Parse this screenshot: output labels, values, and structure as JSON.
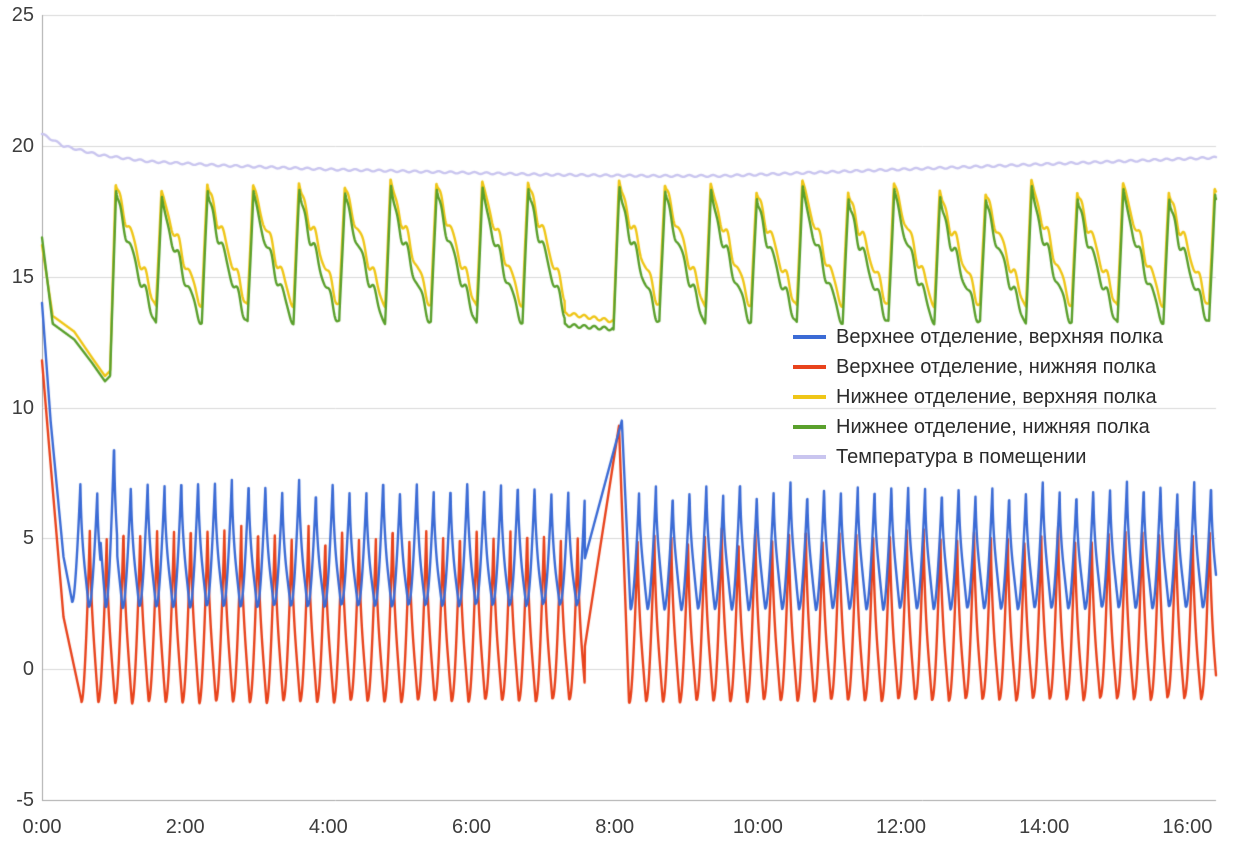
{
  "chart_data": {
    "type": "line",
    "title": "",
    "xlabel": "",
    "ylabel": "",
    "x_axis": {
      "tick_labels": [
        "0:00",
        "2:00",
        "4:00",
        "6:00",
        "8:00",
        "10:00",
        "12:00",
        "14:00",
        "16:00"
      ],
      "tick_hours": [
        0,
        2,
        4,
        6,
        8,
        10,
        12,
        14,
        16
      ],
      "range_hours": [
        0,
        16.4
      ]
    },
    "y_axis": {
      "tick_values": [
        25,
        20,
        15,
        10,
        5,
        0,
        -5
      ],
      "range": [
        -5,
        25
      ]
    },
    "grid": {
      "horizontal": true,
      "color": "#d9d9d9",
      "axis_color": "#a6a6a6"
    },
    "legend": {
      "position": "middle-right"
    },
    "draw_order": [
      4,
      2,
      3,
      1,
      0
    ],
    "series": [
      {
        "name": "Верхнее отделение, верхняя полка",
        "color": "#3b6bd5",
        "description": "Starts at 14.0°C, drops to ~2.4°C by 0:25, then compressor cycling between ~2.3 and ~7.0°C with ~14 min period; one taller early peak ~8.7°C near 0:55; defrost ramp from ~7:35 peaking at 9.5°C near 8:05, then cycling resumes",
        "gen": {
          "kind": "cycling",
          "lead_in": [
            [
              0,
              14.0
            ],
            [
              0.12,
              9.5
            ],
            [
              0.3,
              4.3
            ],
            [
              0.42,
              2.6
            ]
          ],
          "cycle_start": 0.42,
          "phase0": 0,
          "period": 0.235,
          "base_min": 2.35,
          "base_max": 7.0,
          "rise_frac": 0.5,
          "rise_pow": 1.8,
          "fall_pow": 0.55,
          "peak_jitter": 0.3,
          "noise": 0.06,
          "wiggle": 0,
          "events": [
            {
              "type": "spike",
              "t0": 0.82,
              "t1": 1.05,
              "peak": 8.7
            },
            {
              "type": "defrost",
              "t0": 7.58,
              "t1": 8.1,
              "t2": 8.22,
              "start_v": 4.2,
              "peak": 9.5
            }
          ]
        }
      },
      {
        "name": "Верхнее отделение, нижняя полка",
        "color": "#e8431c",
        "description": "Starts at 11.8°C, drops below 0°C by 0:35, then compressor cycling between ~-1.3 and ~5.3°C with ~14 min period; defrost ramp peaking at 9.3°C near 8:05, then cycling resumes",
        "gen": {
          "kind": "cycling",
          "lead_in": [
            [
              0,
              11.8
            ],
            [
              0.1,
              8.5
            ],
            [
              0.3,
              2.0
            ],
            [
              0.55,
              -1.2
            ]
          ],
          "cycle_start": 0.55,
          "phase0": 0,
          "period": 0.235,
          "base_min": -1.25,
          "base_max": 5.3,
          "rise_frac": 0.5,
          "rise_pow": 1.8,
          "fall_pow": 0.55,
          "peak_jitter": 0.3,
          "noise": 0.06,
          "wiggle": 0,
          "events": [
            {
              "type": "defrost",
              "t0": 7.58,
              "t1": 8.06,
              "t2": 8.2,
              "start_v": 0.8,
              "peak": 9.3
            }
          ]
        }
      },
      {
        "name": "Нижнее отделение, верхняя полка",
        "color": "#efc617",
        "description": "Starts ~16.2°C, falls to ~11.2°C by 0:53, then sawtooth cycling: fast rise to ~18.4°C, slow wavy decay to ~13.9°C, period ~38 min; longer low hold ~13.4°C around 7:20-8:00, then resumes",
        "gen": {
          "kind": "cycling",
          "lead_in": [
            [
              0,
              16.2
            ],
            [
              0.15,
              13.5
            ],
            [
              0.45,
              12.9
            ],
            [
              0.7,
              11.9
            ],
            [
              0.88,
              11.2
            ],
            [
              0.95,
              11.4
            ]
          ],
          "cycle_start": 0.95,
          "phase0": 0,
          "period": 0.64,
          "base_min": 13.9,
          "base_max": 18.45,
          "rise_frac": 0.12,
          "rise_pow": 1.0,
          "fall_pow": 0.9,
          "peak_jitter": 0.25,
          "noise": 0.07,
          "wiggle": 0.3,
          "events": [
            {
              "type": "hold",
              "t0": 7.3,
              "t1": 7.98,
              "v": 13.6,
              "drop": 0.3
            }
          ]
        }
      },
      {
        "name": "Нижнее отделение, нижняя полка",
        "color": "#5aa02c",
        "description": "Starts ~16.5°C, falls to ~11.0°C by 0:53, then sawtooth cycling: fast rise to ~18.2°C, slow wavy decay to ~13.2°C, period ~38 min, sits ~0.4°C below the upper shelf during decay; low hold ~13.1°C around 7:20-8:00",
        "gen": {
          "kind": "cycling",
          "lead_in": [
            [
              0,
              16.5
            ],
            [
              0.15,
              13.2
            ],
            [
              0.45,
              12.6
            ],
            [
              0.7,
              11.7
            ],
            [
              0.88,
              11.0
            ],
            [
              0.95,
              11.2
            ]
          ],
          "cycle_start": 0.95,
          "phase0": 0,
          "period": 0.64,
          "base_min": 13.25,
          "base_max": 18.2,
          "rise_frac": 0.13,
          "rise_pow": 1.0,
          "fall_pow": 0.8,
          "peak_jitter": 0.25,
          "noise": 0.07,
          "wiggle": 0.3,
          "events": [
            {
              "type": "hold",
              "t0": 7.3,
              "t1": 7.98,
              "v": 13.15,
              "drop": 0.15
            }
          ]
        }
      },
      {
        "name": "Температура в помещении",
        "color": "#c9c5ef",
        "description": "Nearly flat room temperature: 20.4°C at 0:00, slowly declining to ~18.8°C around 8:00-9:30, then slowly rising back to ~19.6°C by end of record",
        "gen": {
          "kind": "anchors",
          "noise": 0.035,
          "anchors": [
            [
              0,
              20.45
            ],
            [
              0.3,
              20.0
            ],
            [
              0.8,
              19.65
            ],
            [
              1.5,
              19.4
            ],
            [
              2.5,
              19.25
            ],
            [
              4.0,
              19.1
            ],
            [
              5.5,
              19.0
            ],
            [
              7.0,
              18.9
            ],
            [
              8.5,
              18.85
            ],
            [
              9.5,
              18.85
            ],
            [
              10.5,
              18.95
            ],
            [
              12.0,
              19.1
            ],
            [
              13.5,
              19.25
            ],
            [
              15.0,
              19.4
            ],
            [
              16.4,
              19.55
            ]
          ]
        }
      }
    ]
  }
}
